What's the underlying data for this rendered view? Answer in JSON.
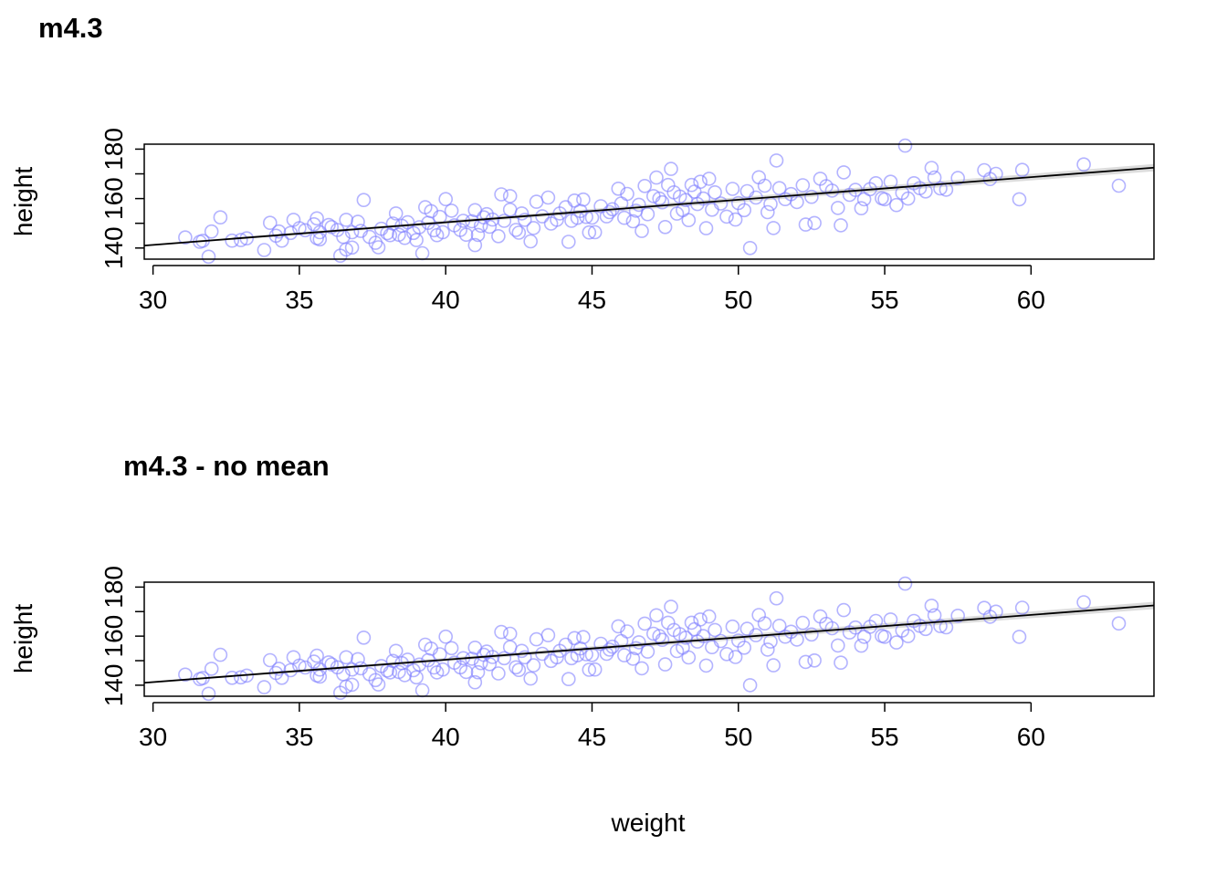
{
  "figure": {
    "x_label": "weight"
  },
  "colors": {
    "points": "#8080ff",
    "line": "#000000",
    "band": "#d3d3d3",
    "frame": "#000000"
  },
  "chart_data": [
    {
      "type": "scatter",
      "title": "m4.3",
      "xlabel": "",
      "ylabel": "height",
      "xlim": [
        29.7,
        64.2
      ],
      "ylim": [
        135.5,
        182
      ],
      "xticks": [
        30,
        35,
        40,
        45,
        50,
        55,
        60
      ],
      "yticks": [
        140,
        150,
        160,
        170,
        180
      ],
      "ytick_labels": [
        "140",
        "",
        "160",
        "",
        "180"
      ],
      "fit_line": {
        "x": [
          29.7,
          64.2
        ],
        "y": [
          141.0,
          172.5
        ]
      },
      "points": [
        [
          31.1,
          144.3
        ],
        [
          31.6,
          142.5
        ],
        [
          31.7,
          142.9
        ],
        [
          31.9,
          136.5
        ],
        [
          32.0,
          146.7
        ],
        [
          32.3,
          152.4
        ],
        [
          32.7,
          143.0
        ],
        [
          33.0,
          143.2
        ],
        [
          33.2,
          143.9
        ],
        [
          33.8,
          139.2
        ],
        [
          34.0,
          150.2
        ],
        [
          34.2,
          145.0
        ],
        [
          34.3,
          146.7
        ],
        [
          34.4,
          143.0
        ],
        [
          34.7,
          146.1
        ],
        [
          34.8,
          151.4
        ],
        [
          35.0,
          148.0
        ],
        [
          35.2,
          147.2
        ],
        [
          35.5,
          149.6
        ],
        [
          35.6,
          144.0
        ],
        [
          35.6,
          152.0
        ],
        [
          35.7,
          146.4
        ],
        [
          35.7,
          143.5
        ],
        [
          36.0,
          149.3
        ],
        [
          36.1,
          148.5
        ],
        [
          36.3,
          147.3
        ],
        [
          36.4,
          136.9
        ],
        [
          36.5,
          144.5
        ],
        [
          36.6,
          151.4
        ],
        [
          36.6,
          139.4
        ],
        [
          36.8,
          140.2
        ],
        [
          36.8,
          146.4
        ],
        [
          37.0,
          150.6
        ],
        [
          37.1,
          146.9
        ],
        [
          37.2,
          159.4
        ],
        [
          37.4,
          144.5
        ],
        [
          37.6,
          142.1
        ],
        [
          37.7,
          140.3
        ],
        [
          37.8,
          147.8
        ],
        [
          38.0,
          146.0
        ],
        [
          38.1,
          145.2
        ],
        [
          38.2,
          149.9
        ],
        [
          38.3,
          154.0
        ],
        [
          38.4,
          145.4
        ],
        [
          38.5,
          149.0
        ],
        [
          38.6,
          144.1
        ],
        [
          38.7,
          150.4
        ],
        [
          38.9,
          146.1
        ],
        [
          39.0,
          143.2
        ],
        [
          39.1,
          148.4
        ],
        [
          39.2,
          137.9
        ],
        [
          39.3,
          156.5
        ],
        [
          39.4,
          150.2
        ],
        [
          39.5,
          154.9
        ],
        [
          39.6,
          147.2
        ],
        [
          39.7,
          145.2
        ],
        [
          39.8,
          152.6
        ],
        [
          39.9,
          146.4
        ],
        [
          40.0,
          159.8
        ],
        [
          40.2,
          155.1
        ],
        [
          40.3,
          149.2
        ],
        [
          40.5,
          147.3
        ],
        [
          40.6,
          151.0
        ],
        [
          40.7,
          145.4
        ],
        [
          40.9,
          150.8
        ],
        [
          41.0,
          155.3
        ],
        [
          41.0,
          141.2
        ],
        [
          41.1,
          145.3
        ],
        [
          41.2,
          149.0
        ],
        [
          41.3,
          152.4
        ],
        [
          41.4,
          153.7
        ],
        [
          41.5,
          148.6
        ],
        [
          41.6,
          151.5
        ],
        [
          41.8,
          144.8
        ],
        [
          41.9,
          161.7
        ],
        [
          42.0,
          151.0
        ],
        [
          42.2,
          155.5
        ],
        [
          42.2,
          161.0
        ],
        [
          42.4,
          147.3
        ],
        [
          42.5,
          146.2
        ],
        [
          42.6,
          154.0
        ],
        [
          42.7,
          151.4
        ],
        [
          42.9,
          142.7
        ],
        [
          43.0,
          148.1
        ],
        [
          43.1,
          158.7
        ],
        [
          43.3,
          152.8
        ],
        [
          43.5,
          160.4
        ],
        [
          43.6,
          149.9
        ],
        [
          43.8,
          151.4
        ],
        [
          43.9,
          154.0
        ],
        [
          44.1,
          156.5
        ],
        [
          44.2,
          142.5
        ],
        [
          44.3,
          151.0
        ],
        [
          44.4,
          159.2
        ],
        [
          44.5,
          152.2
        ],
        [
          44.6,
          155.0
        ],
        [
          44.7,
          159.6
        ],
        [
          44.8,
          152.6
        ],
        [
          44.9,
          146.3
        ],
        [
          45.0,
          152.3
        ],
        [
          45.1,
          146.4
        ],
        [
          45.3,
          156.9
        ],
        [
          45.5,
          152.8
        ],
        [
          45.6,
          154.5
        ],
        [
          45.7,
          155.7
        ],
        [
          45.9,
          164.0
        ],
        [
          46.0,
          158.0
        ],
        [
          46.1,
          152.2
        ],
        [
          46.2,
          161.9
        ],
        [
          46.4,
          150.8
        ],
        [
          46.5,
          155.1
        ],
        [
          46.6,
          157.5
        ],
        [
          46.7,
          146.9
        ],
        [
          46.8,
          165.1
        ],
        [
          46.9,
          153.7
        ],
        [
          47.1,
          161.0
        ],
        [
          47.2,
          168.5
        ],
        [
          47.3,
          160.0
        ],
        [
          47.4,
          158.5
        ],
        [
          47.5,
          148.5
        ],
        [
          47.6,
          165.5
        ],
        [
          47.7,
          172.0
        ],
        [
          47.8,
          162.5
        ],
        [
          47.9,
          153.9
        ],
        [
          48.0,
          160.8
        ],
        [
          48.1,
          155.3
        ],
        [
          48.2,
          159.4
        ],
        [
          48.3,
          151.3
        ],
        [
          48.4,
          165.5
        ],
        [
          48.5,
          162.8
        ],
        [
          48.6,
          157.8
        ],
        [
          48.7,
          166.8
        ],
        [
          48.8,
          160.0
        ],
        [
          48.9,
          148.0
        ],
        [
          49.0,
          168.0
        ],
        [
          49.1,
          155.5
        ],
        [
          49.2,
          162.5
        ],
        [
          49.4,
          158.0
        ],
        [
          49.6,
          152.7
        ],
        [
          49.8,
          163.9
        ],
        [
          49.9,
          151.5
        ],
        [
          50.0,
          158.2
        ],
        [
          50.2,
          155.3
        ],
        [
          50.3,
          163.0
        ],
        [
          50.4,
          140.0
        ],
        [
          50.6,
          160.4
        ],
        [
          50.7,
          168.6
        ],
        [
          50.9,
          165.2
        ],
        [
          51.0,
          154.5
        ],
        [
          51.1,
          157.8
        ],
        [
          51.2,
          148.1
        ],
        [
          51.3,
          175.4
        ],
        [
          51.4,
          164.2
        ],
        [
          51.6,
          159.8
        ],
        [
          51.8,
          161.8
        ],
        [
          52.0,
          158.6
        ],
        [
          52.2,
          165.4
        ],
        [
          52.3,
          149.5
        ],
        [
          52.5,
          160.7
        ],
        [
          52.6,
          150.1
        ],
        [
          52.8,
          168.0
        ],
        [
          53.0,
          165.0
        ],
        [
          53.2,
          163.2
        ],
        [
          53.4,
          156.2
        ],
        [
          53.5,
          149.2
        ],
        [
          53.6,
          170.6
        ],
        [
          53.8,
          161.5
        ],
        [
          54.0,
          163.5
        ],
        [
          54.2,
          156.1
        ],
        [
          54.3,
          159.7
        ],
        [
          54.5,
          163.8
        ],
        [
          54.7,
          166.2
        ],
        [
          54.9,
          160.1
        ],
        [
          55.0,
          159.7
        ],
        [
          55.2,
          166.8
        ],
        [
          55.4,
          157.4
        ],
        [
          55.6,
          162.3
        ],
        [
          55.7,
          181.4
        ],
        [
          55.8,
          160.0
        ],
        [
          56.0,
          166.2
        ],
        [
          56.2,
          164.2
        ],
        [
          56.4,
          162.9
        ],
        [
          56.6,
          172.4
        ],
        [
          56.7,
          168.5
        ],
        [
          56.9,
          164.1
        ],
        [
          57.1,
          163.6
        ],
        [
          57.5,
          168.3
        ],
        [
          58.4,
          171.5
        ],
        [
          58.6,
          167.9
        ],
        [
          58.8,
          170.0
        ],
        [
          59.6,
          159.7
        ],
        [
          59.7,
          171.6
        ],
        [
          61.8,
          173.8
        ],
        [
          63.0,
          165.2
        ]
      ]
    },
    {
      "type": "scatter",
      "title": "m4.3 - no mean",
      "xlabel": "weight",
      "ylabel": "height",
      "xlim": [
        29.7,
        64.2
      ],
      "ylim": [
        135.5,
        182
      ],
      "xticks": [
        30,
        35,
        40,
        45,
        50,
        55,
        60
      ],
      "yticks": [
        140,
        150,
        160,
        170,
        180
      ],
      "ytick_labels": [
        "140",
        "",
        "160",
        "",
        "180"
      ],
      "fit_line": {
        "x": [
          29.7,
          64.2
        ],
        "y": [
          141.0,
          172.5
        ]
      },
      "points": "same as m4.3"
    }
  ]
}
